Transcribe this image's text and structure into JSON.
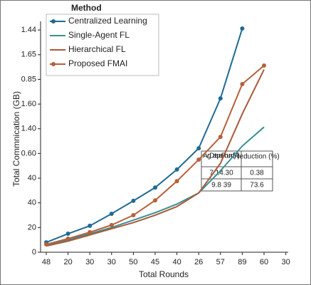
{
  "chart_data": {
    "type": "line",
    "x_label": "Total Rounds",
    "y_label": "Total Commnication (GB)",
    "legend_title": "Method",
    "categories": [
      "48",
      "20",
      "30",
      "30",
      "50",
      "45",
      "40",
      "26",
      "57",
      "89",
      "60",
      "30"
    ],
    "ylim": [
      0,
      9.35
    ],
    "yticks": [
      0,
      {
        "value": 1,
        "label": "20"
      },
      {
        "value": 2,
        "label": "40"
      },
      {
        "value": 3,
        "label": "40"
      },
      {
        "value": 4,
        "label": "0.60"
      },
      {
        "value": 5,
        "label": "1.40"
      },
      {
        "value": 6,
        "label": "1.60"
      },
      {
        "value": 7,
        "label": "0.85"
      },
      {
        "value": 8,
        "label": "1.65"
      },
      {
        "value": 9,
        "label": "1.44"
      }
    ],
    "series": [
      {
        "name": "Centralized Learning",
        "color": "#1f6a93",
        "markers": true,
        "values": [
          0.4,
          0.75,
          1.07,
          1.56,
          2.08,
          2.62,
          3.35,
          4.21,
          6.23,
          9.06,
          null,
          null
        ]
      },
      {
        "name": "Single-Agent FL",
        "color": "#3a8f96",
        "markers": false,
        "values": [
          0.26,
          0.5,
          0.75,
          1.0,
          1.3,
          1.6,
          1.95,
          2.4,
          3.3,
          4.3,
          5.07,
          null
        ]
      },
      {
        "name": "Hierarchical FL",
        "color": "#a85a38",
        "markers": false,
        "values": [
          0.25,
          0.45,
          0.7,
          0.95,
          1.2,
          1.5,
          1.85,
          2.4,
          3.6,
          5.6,
          7.4,
          null
        ]
      },
      {
        "name": "Proposed FMAI",
        "color": "#b5613a",
        "markers": true,
        "values": [
          0.32,
          0.55,
          0.81,
          1.1,
          1.5,
          2.1,
          2.88,
          3.75,
          4.67,
          6.81,
          7.56,
          null
        ]
      }
    ],
    "table": {
      "header": [
        "Avg. Data per Round (%)",
        "Reduction (%)"
      ],
      "rows": [
        [
          "7.14.30",
          "0.38"
        ],
        [
          "9.8   39",
          "73.6"
        ]
      ]
    }
  }
}
